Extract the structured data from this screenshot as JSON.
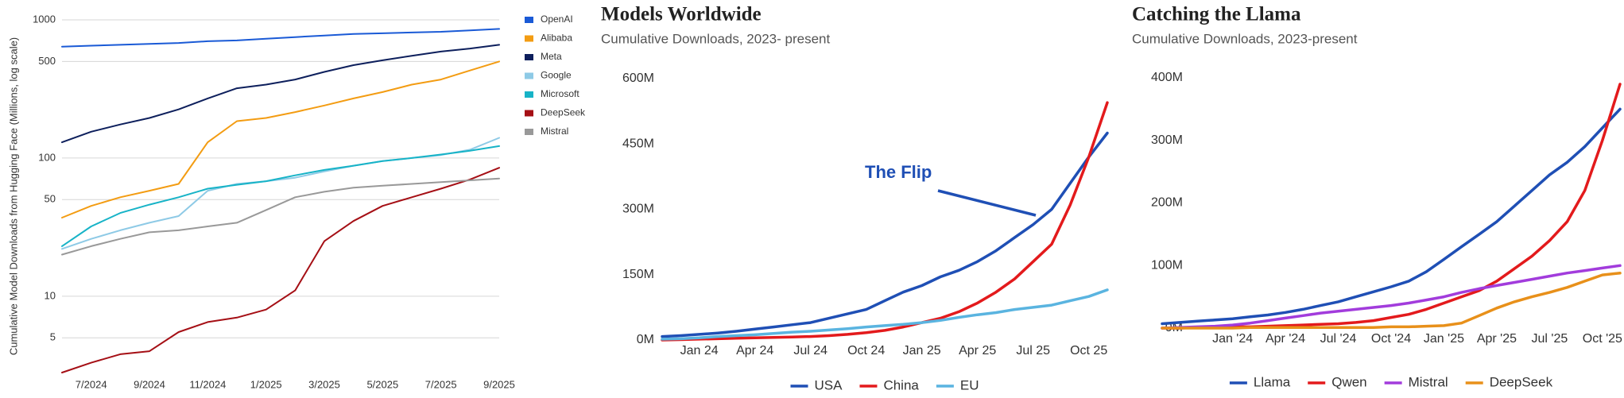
{
  "chart_data": [
    {
      "type": "line",
      "y_label": "Cumulative Model Downloads from Hugging Face (Millions, log scale)",
      "categories": [
        null,
        "7/2024",
        null,
        "9/2024",
        null,
        "11/2024",
        null,
        "1/2025",
        null,
        "3/2025",
        null,
        "5/2025",
        null,
        "7/2025",
        null,
        "9/2025"
      ],
      "series": [
        {
          "name": "OpenAI",
          "color": "#1a5ad6",
          "values": [
            640,
            650,
            660,
            670,
            680,
            700,
            710,
            730,
            750,
            770,
            790,
            800,
            810,
            820,
            840,
            860
          ]
        },
        {
          "name": "Alibaba",
          "color": "#f39c12",
          "values": [
            37,
            45,
            52,
            58,
            65,
            130,
            185,
            195,
            215,
            240,
            270,
            300,
            340,
            370,
            430,
            500
          ]
        },
        {
          "name": "Meta",
          "color": "#0d1f5c",
          "values": [
            130,
            155,
            175,
            195,
            225,
            270,
            320,
            340,
            370,
            420,
            470,
            510,
            550,
            590,
            620,
            660
          ]
        },
        {
          "name": "Google",
          "color": "#8ecae6",
          "values": [
            22,
            26,
            30,
            34,
            38,
            58,
            65,
            68,
            72,
            80,
            88,
            95,
            100,
            105,
            115,
            140
          ]
        },
        {
          "name": "Microsoft",
          "color": "#17b3c7",
          "values": [
            23,
            32,
            40,
            46,
            52,
            60,
            64,
            68,
            75,
            82,
            88,
            95,
            100,
            106,
            113,
            122
          ]
        },
        {
          "name": "DeepSeek",
          "color": "#a50f15",
          "values": [
            2.8,
            3.3,
            3.8,
            4,
            5.5,
            6.5,
            7,
            8,
            11,
            25,
            35,
            45,
            52,
            60,
            70,
            85
          ]
        },
        {
          "name": "Mistral",
          "color": "#999999",
          "values": [
            20,
            23,
            26,
            29,
            30,
            32,
            34,
            42,
            52,
            57,
            61,
            63,
            65,
            67,
            69,
            71
          ]
        }
      ],
      "ylim": [
        2.8,
        1000
      ],
      "yticks": [
        5,
        10,
        50,
        100,
        500,
        1000
      ],
      "log_scale": true,
      "grid": true,
      "legend": "right"
    },
    {
      "type": "line",
      "title": "Models Worldwide",
      "subtitle": "Cumulative Downloads, 2023- present",
      "annotation": "The Flip",
      "categories": [
        null,
        null,
        "Jan 24",
        null,
        null,
        "Apr 24",
        null,
        null,
        "Jul 24",
        null,
        null,
        "Oct 24",
        null,
        null,
        "Jan 25",
        null,
        null,
        "Apr 25",
        null,
        null,
        "Jul 25",
        null,
        null,
        "Oct 25",
        null
      ],
      "series": [
        {
          "name": "USA",
          "color": "#1f4fb5",
          "values": [
            8,
            10,
            13,
            16,
            20,
            25,
            30,
            35,
            40,
            50,
            60,
            70,
            90,
            110,
            125,
            145,
            160,
            180,
            205,
            235,
            265,
            300,
            360,
            420,
            475
          ]
        },
        {
          "name": "China",
          "color": "#e31a1c",
          "values": [
            0,
            1,
            2,
            3,
            4,
            5,
            6,
            7,
            8,
            10,
            13,
            17,
            22,
            30,
            40,
            50,
            65,
            85,
            110,
            140,
            180,
            220,
            310,
            420,
            545
          ]
        },
        {
          "name": "EU",
          "color": "#5ab4e0",
          "values": [
            2,
            3,
            5,
            8,
            10,
            12,
            15,
            18,
            20,
            23,
            26,
            30,
            33,
            36,
            40,
            45,
            52,
            58,
            63,
            70,
            75,
            80,
            90,
            100,
            115
          ]
        }
      ],
      "ylim": [
        0,
        600
      ],
      "yticks": [
        {
          "value": 0,
          "label": "0M"
        },
        {
          "value": 150,
          "label": "150M"
        },
        {
          "value": 300,
          "label": "300M"
        },
        {
          "value": 450,
          "label": "450M"
        },
        {
          "value": 600,
          "label": "600M"
        }
      ],
      "grid": false,
      "legend": "bottom"
    },
    {
      "type": "line",
      "title": "Catching the Llama",
      "subtitle": "Cumulative Downloads, 2023-present",
      "categories": [
        null,
        null,
        null,
        null,
        "Jan '24",
        null,
        null,
        "Apr '24",
        null,
        null,
        "Jul '24",
        null,
        null,
        "Oct '24",
        null,
        null,
        "Jan '25",
        null,
        null,
        "Apr '25",
        null,
        null,
        "Jul '25",
        null,
        null,
        "Oct '25",
        null
      ],
      "series": [
        {
          "name": "Llama",
          "color": "#1f4fb5",
          "values": [
            7,
            9,
            11,
            13,
            15,
            18,
            21,
            25,
            30,
            36,
            42,
            50,
            58,
            66,
            75,
            90,
            110,
            130,
            150,
            170,
            195,
            220,
            245,
            265,
            290,
            320,
            350
          ]
        },
        {
          "name": "Qwen",
          "color": "#e31a1c",
          "values": [
            0,
            0,
            1,
            1,
            2,
            2,
            3,
            4,
            5,
            6,
            7,
            9,
            12,
            17,
            22,
            30,
            40,
            50,
            60,
            75,
            95,
            115,
            140,
            170,
            220,
            300,
            390
          ]
        },
        {
          "name": "Mistral",
          "color": "#a23cdc",
          "values": [
            0,
            1,
            2,
            3,
            5,
            8,
            12,
            16,
            20,
            24,
            27,
            30,
            33,
            36,
            40,
            45,
            50,
            57,
            63,
            68,
            73,
            78,
            83,
            88,
            92,
            96,
            100
          ]
        },
        {
          "name": "DeepSeek",
          "color": "#e8901a",
          "values": [
            0,
            0,
            0,
            0,
            0,
            1,
            1,
            1,
            1,
            1,
            1,
            1,
            1,
            2,
            2,
            3,
            4,
            8,
            20,
            32,
            42,
            50,
            57,
            65,
            75,
            85,
            88
          ]
        }
      ],
      "ylim": [
        0,
        400
      ],
      "yticks": [
        {
          "value": 0,
          "label": "0M"
        },
        {
          "value": 100,
          "label": "100M"
        },
        {
          "value": 200,
          "label": "200M"
        },
        {
          "value": 300,
          "label": "300M"
        },
        {
          "value": 400,
          "label": "400M"
        }
      ],
      "grid": false,
      "legend": "bottom"
    }
  ]
}
